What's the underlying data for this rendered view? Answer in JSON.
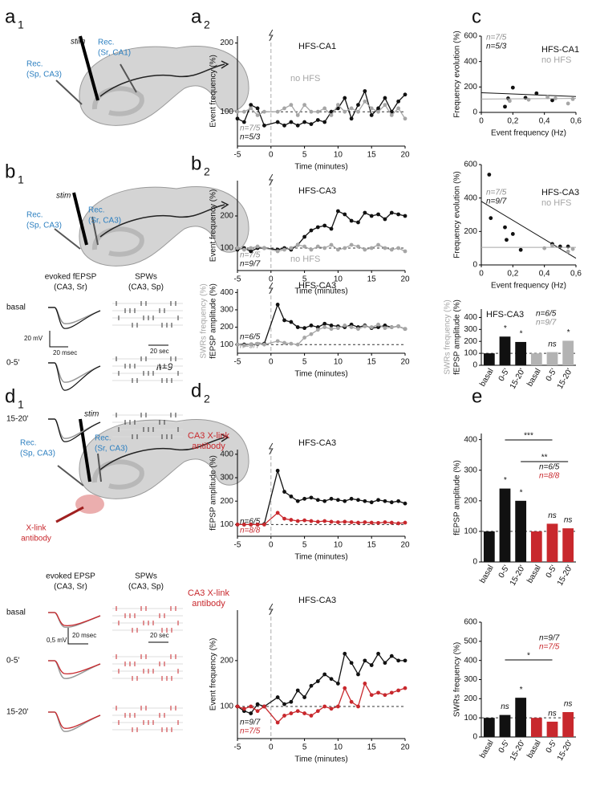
{
  "panels": {
    "labels": [
      {
        "letter": "a",
        "sub": "1"
      },
      {
        "letter": "a",
        "sub": "2"
      },
      {
        "letter": "c"
      },
      {
        "letter": "b",
        "sub": "1"
      },
      {
        "letter": "b",
        "sub": "2"
      },
      {
        "letter": "d",
        "sub": "1"
      },
      {
        "letter": "d",
        "sub": "2"
      },
      {
        "letter": "e"
      }
    ],
    "a1": {
      "stim": "stim",
      "rec_left": [
        "Rec.",
        "(Sp, CA3)"
      ],
      "rec_right": [
        "Rec.",
        "(Sr, CA1)"
      ]
    },
    "b1": {
      "stim": "stim",
      "rec_left": [
        "Rec.",
        "(Sp, CA3)"
      ],
      "rec_right": [
        "Rec.",
        "(Sr, CA3)"
      ],
      "evoked": [
        "evoked fEPSP",
        "(CA3, Sr)"
      ],
      "spw": [
        "SPWs",
        "(CA3, Sp)"
      ],
      "conditions": [
        "basal",
        "0-5'",
        "15-20'"
      ],
      "scale_v": "20 mV",
      "scale_t": "20 msec",
      "scale_spw": "20 sec",
      "n": "n=9"
    },
    "d1": {
      "stim": "stim",
      "rec_left": [
        "Rec.",
        "(Sp, CA3)"
      ],
      "rec_right": [
        "Rec.",
        "(Sr, CA3)"
      ],
      "antibody": [
        "X-link",
        "antibody"
      ],
      "evoked": [
        "evoked EPSP",
        "(CA3, Sr)"
      ],
      "spw": [
        "SPWs",
        "(CA3, Sp)"
      ],
      "conditions": [
        "basal",
        "0-5'",
        "15-20'"
      ],
      "scale_v": "0,5 mV",
      "scale_t": "20 msec",
      "scale_spw": "20 sec"
    }
  },
  "chart_data": [
    {
      "type": "line",
      "title": "HFS-CA1",
      "xlabel": "Time (minutes)",
      "ylabel": "Event frequency (%)",
      "xlim": [
        -5,
        20
      ],
      "xticks": [
        -5,
        0,
        5,
        10,
        15,
        20
      ],
      "ylim": [
        50,
        210
      ],
      "yticks": [
        100,
        200
      ],
      "hline": 100,
      "vline": 0,
      "x": [
        -5,
        -4,
        -3,
        -2,
        -1,
        1,
        2,
        3,
        4,
        5,
        6,
        7,
        8,
        9,
        10,
        11,
        12,
        13,
        14,
        15,
        16,
        17,
        18,
        19,
        20
      ],
      "series": [
        {
          "color": "#111111",
          "values": [
            90,
            85,
            110,
            105,
            80,
            85,
            80,
            85,
            80,
            85,
            82,
            88,
            85,
            100,
            105,
            120,
            90,
            110,
            130,
            95,
            105,
            120,
            100,
            115,
            125
          ]
        },
        {
          "name": "no HFS",
          "color": "#a6a6a6",
          "values": [
            100,
            100,
            105,
            95,
            100,
            100,
            105,
            110,
            95,
            110,
            100,
            100,
            105,
            95,
            110,
            100,
            105,
            100,
            115,
            105,
            100,
            110,
            95,
            105,
            90
          ]
        }
      ],
      "n_labels": [
        {
          "text": "n=7/5",
          "color": "#8c8c8c"
        },
        {
          "text": "n=5/3",
          "color": "#111111"
        }
      ]
    },
    {
      "type": "line",
      "title": "HFS-CA3",
      "xlabel": "Time (minutes)",
      "ylabel": "Event frequency (%)",
      "xlim": [
        -5,
        20
      ],
      "xticks": [
        -5,
        0,
        5,
        10,
        15,
        20
      ],
      "ylim": [
        30,
        310
      ],
      "yticks": [
        100,
        200
      ],
      "hline": 100,
      "vline": 0,
      "x": [
        -5,
        -4,
        -3,
        -2,
        -1,
        1,
        2,
        3,
        4,
        5,
        6,
        7,
        8,
        9,
        10,
        11,
        12,
        13,
        14,
        15,
        16,
        17,
        18,
        19,
        20
      ],
      "series": [
        {
          "color": "#111111",
          "values": [
            95,
            100,
            90,
            100,
            100,
            95,
            100,
            95,
            110,
            135,
            155,
            165,
            170,
            160,
            215,
            205,
            185,
            180,
            210,
            200,
            205,
            190,
            210,
            205,
            200
          ]
        },
        {
          "name": "no HFS",
          "color": "#a6a6a6",
          "values": [
            100,
            95,
            100,
            105,
            100,
            90,
            95,
            100,
            110,
            105,
            95,
            105,
            100,
            110,
            95,
            100,
            110,
            105,
            95,
            100,
            110,
            100,
            95,
            100,
            90
          ]
        }
      ],
      "n_labels": [
        {
          "text": "n=7/5",
          "color": "#8c8c8c"
        },
        {
          "text": "n=9/7",
          "color": "#111111"
        }
      ]
    },
    {
      "type": "line",
      "title": "HFS-CA3",
      "xlabel": "Time (minutes)",
      "ylabel": "fEPSP amplitude (%)",
      "ylabel2": "SWRs frequency (%)",
      "ylabel2_color": "#a6a6a6",
      "xlim": [
        -5,
        20
      ],
      "xticks": [
        -5,
        0,
        5,
        10,
        15,
        20
      ],
      "ylim": [
        50,
        420
      ],
      "yticks": [
        100,
        200,
        300,
        400
      ],
      "hline": 100,
      "vline": 0,
      "x": [
        -5,
        -4,
        -3,
        -2,
        -1,
        1,
        2,
        3,
        4,
        5,
        6,
        7,
        8,
        9,
        10,
        11,
        12,
        13,
        14,
        15,
        16,
        17,
        18,
        19,
        20
      ],
      "series": [
        {
          "color": "#111111",
          "values": [
            100,
            100,
            100,
            103,
            105,
            330,
            240,
            230,
            200,
            195,
            210,
            200,
            220,
            210,
            205,
            200,
            215,
            200,
            210,
            195,
            200,
            210,
            200,
            205,
            190
          ]
        },
        {
          "color": "#a6a6a6",
          "values": [
            100,
            95,
            100,
            105,
            100,
            120,
            110,
            105,
            100,
            140,
            160,
            185,
            200,
            190,
            195,
            210,
            200,
            190,
            205,
            200,
            215,
            195,
            200,
            205,
            190
          ]
        }
      ],
      "n_labels": [
        {
          "text": "n=6/5",
          "color": "#111111"
        },
        {
          "text": "n=9/7",
          "color": "#8c8c8c"
        }
      ]
    },
    {
      "type": "line",
      "title": "HFS-CA3",
      "xlabel": "Time (minutes)",
      "ylabel": "fEPSP amplitude (%)",
      "xlim": [
        -5,
        20
      ],
      "xticks": [
        -5,
        0,
        5,
        10,
        15,
        20
      ],
      "ylim": [
        50,
        420
      ],
      "yticks": [
        100,
        200,
        300,
        400
      ],
      "hline": 100,
      "vline": 0,
      "x": [
        -5,
        -4,
        -3,
        -2,
        -1,
        1,
        2,
        3,
        4,
        5,
        6,
        7,
        8,
        9,
        10,
        11,
        12,
        13,
        14,
        15,
        16,
        17,
        18,
        19,
        20
      ],
      "series": [
        {
          "color": "#111111",
          "values": [
            100,
            100,
            100,
            100,
            102,
            330,
            240,
            220,
            200,
            210,
            215,
            205,
            200,
            210,
            205,
            200,
            210,
            205,
            200,
            195,
            205,
            200,
            195,
            200,
            190
          ]
        },
        {
          "name": "CA3 X-link antibody",
          "color": "#c8282d",
          "values": [
            100,
            100,
            100,
            100,
            100,
            150,
            125,
            120,
            115,
            118,
            115,
            112,
            115,
            112,
            110,
            112,
            110,
            108,
            110,
            108,
            107,
            110,
            108,
            105,
            108
          ]
        }
      ],
      "n_labels": [
        {
          "text": "n=6/5",
          "color": "#111111"
        },
        {
          "text": "n=8/8",
          "color": "#c8282d"
        }
      ]
    },
    {
      "type": "line",
      "title": "HFS-CA3",
      "xlabel": "Time (minutes)",
      "ylabel": "Event frequency (%)",
      "xlim": [
        -5,
        20
      ],
      "xticks": [
        -5,
        0,
        5,
        10,
        15,
        20
      ],
      "ylim": [
        30,
        310
      ],
      "yticks": [
        100,
        200
      ],
      "hline": 100,
      "vline": 0,
      "x": [
        -5,
        -4,
        -3,
        -2,
        -1,
        1,
        2,
        3,
        4,
        5,
        6,
        7,
        8,
        9,
        10,
        11,
        12,
        13,
        14,
        15,
        16,
        17,
        18,
        19,
        20
      ],
      "series": [
        {
          "color": "#111111",
          "values": [
            100,
            90,
            85,
            105,
            100,
            120,
            105,
            110,
            135,
            120,
            145,
            155,
            170,
            160,
            150,
            215,
            195,
            170,
            200,
            190,
            215,
            195,
            210,
            200,
            200
          ]
        },
        {
          "name": "CA3 X-link antibody",
          "color": "#c8282d",
          "values": [
            100,
            95,
            100,
            90,
            100,
            65,
            80,
            85,
            90,
            85,
            80,
            90,
            100,
            95,
            100,
            140,
            110,
            100,
            150,
            125,
            130,
            125,
            130,
            135,
            140
          ]
        }
      ],
      "n_labels": [
        {
          "text": "n=9/7",
          "color": "#111111"
        },
        {
          "text": "n=7/5",
          "color": "#c8282d"
        }
      ]
    },
    {
      "type": "scatter",
      "xlabel": "Event frequency (Hz)",
      "ylabel": "Frequency evolution (%)",
      "xlim": [
        0,
        0.6
      ],
      "xticks": [
        0,
        {
          "value": 0.2,
          "label": "0,2"
        },
        {
          "value": 0.4,
          "label": "0,4"
        },
        {
          "value": 0.6,
          "label": "0,6"
        }
      ],
      "ylim": [
        0,
        600
      ],
      "yticks": [
        0,
        200,
        400,
        600
      ],
      "series": [
        {
          "name": "HFS-CA1",
          "color": "#111111",
          "x": [
            0.15,
            0.17,
            0.2,
            0.28,
            0.35,
            0.45
          ],
          "values": [
            45,
            110,
            195,
            115,
            150,
            95
          ],
          "fit": [
            155,
            125
          ]
        },
        {
          "name": "no HFS",
          "color": "#a6a6a6",
          "x": [
            0.18,
            0.3,
            0.42,
            0.47,
            0.55,
            0.58
          ],
          "values": [
            90,
            100,
            120,
            110,
            70,
            105
          ],
          "fit": [
            105,
            110
          ]
        }
      ],
      "n_labels": [
        {
          "text": "n=7/5",
          "color": "#8c8c8c"
        },
        {
          "text": "n=5/3",
          "color": "#111111"
        }
      ]
    },
    {
      "type": "scatter",
      "xlabel": "Event frequency (Hz)",
      "ylabel": "Frequency evolution (%)",
      "xlim": [
        0,
        0.6
      ],
      "xticks": [
        0,
        {
          "value": 0.2,
          "label": "0,2"
        },
        {
          "value": 0.4,
          "label": "0,4"
        },
        {
          "value": 0.6,
          "label": "0,6"
        }
      ],
      "ylim": [
        0,
        600
      ],
      "yticks": [
        0,
        200,
        400,
        600
      ],
      "series": [
        {
          "name": "HFS-CA3",
          "color": "#111111",
          "x": [
            0.05,
            0.06,
            0.15,
            0.16,
            0.2,
            0.25,
            0.45,
            0.5,
            0.55
          ],
          "values": [
            540,
            280,
            225,
            150,
            185,
            90,
            125,
            110,
            110
          ],
          "fit": [
            380,
            40
          ]
        },
        {
          "name": "no HFS",
          "color": "#a6a6a6",
          "x": [
            0.4,
            0.45,
            0.55,
            0.58
          ],
          "values": [
            100,
            115,
            80,
            95
          ],
          "fit": [
            105,
            105
          ]
        }
      ],
      "n_labels": [
        {
          "text": "n=7/5",
          "color": "#8c8c8c"
        },
        {
          "text": "n=9/7",
          "color": "#111111"
        }
      ]
    },
    {
      "type": "bar",
      "title": "HFS-CA3",
      "ylabel": "fEPSP amplitude (%)",
      "ylabel2": "SWRs frequency (%)",
      "ylabel2_color": "#a6a6a6",
      "categories": [
        "basal",
        "0-5'",
        "15-20'",
        "basal",
        "0-5'",
        "15-20'"
      ],
      "values": [
        100,
        240,
        195,
        100,
        110,
        205
      ],
      "colors": [
        "#111111",
        "#111111",
        "#111111",
        "#b3b3b3",
        "#b3b3b3",
        "#b3b3b3"
      ],
      "significance": [
        null,
        "*",
        "*",
        null,
        "ns",
        "*"
      ],
      "ylim": [
        0,
        470
      ],
      "yticks": [
        0,
        100,
        200,
        300,
        400
      ],
      "hline": 100,
      "n_labels": [
        {
          "text": "n=6/5",
          "color": "#111111"
        },
        {
          "text": "n=9/7",
          "color": "#8c8c8c"
        }
      ]
    },
    {
      "type": "bar",
      "ylabel": "fEPSP amplitude (%)",
      "categories": [
        "basal",
        "0-5'",
        "15-20'",
        "basal",
        "0-5'",
        "15-20'"
      ],
      "values": [
        100,
        240,
        200,
        100,
        125,
        110
      ],
      "colors": [
        "#111111",
        "#111111",
        "#111111",
        "#c8282d",
        "#c8282d",
        "#c8282d"
      ],
      "significance": [
        null,
        "*",
        "*",
        null,
        "ns",
        "ns"
      ],
      "brackets": [
        "***",
        "**"
      ],
      "ylim": [
        0,
        420
      ],
      "yticks": [
        0,
        100,
        200,
        300,
        400
      ],
      "hline": 100,
      "n_labels": [
        {
          "text": "n=6/5",
          "color": "#111111"
        },
        {
          "text": "n=8/8",
          "color": "#c8282d"
        }
      ]
    },
    {
      "type": "bar",
      "ylabel": "SWRs frequency (%)",
      "categories": [
        "basal",
        "0-5'",
        "15-20'",
        "basal",
        "0-5'",
        "15-20'"
      ],
      "values": [
        100,
        115,
        205,
        100,
        80,
        130
      ],
      "colors": [
        "#111111",
        "#111111",
        "#111111",
        "#c8282d",
        "#c8282d",
        "#c8282d"
      ],
      "significance": [
        null,
        "ns",
        "*",
        null,
        "ns",
        "ns"
      ],
      "brackets": [
        "*"
      ],
      "ylim": [
        0,
        600
      ],
      "yticks": [
        0,
        100,
        200,
        300,
        400,
        500,
        600
      ],
      "hline": 100,
      "n_labels": [
        {
          "text": "n=9/7",
          "color": "#111111"
        },
        {
          "text": "n=7/5",
          "color": "#c8282d"
        }
      ]
    }
  ]
}
